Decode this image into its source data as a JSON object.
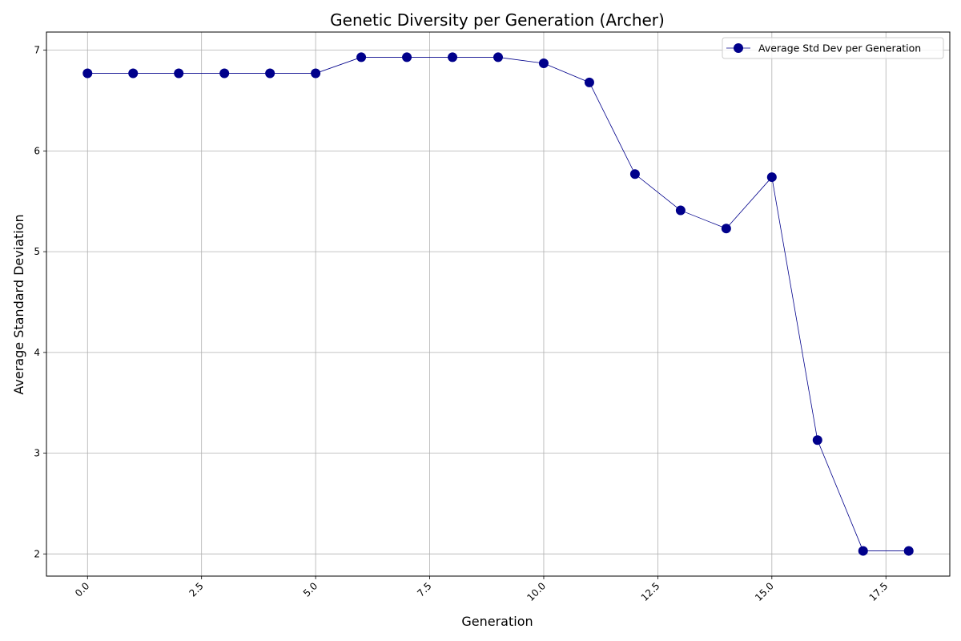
{
  "chart_data": {
    "type": "line",
    "title": "Genetic Diversity per Generation (Archer)",
    "xlabel": "Generation",
    "ylabel": "Average Standard Deviation",
    "xlim": [
      -0.9,
      18.9
    ],
    "ylim": [
      1.78,
      7.18
    ],
    "xticks": [
      0.0,
      2.5,
      5.0,
      7.5,
      10.0,
      12.5,
      15.0,
      17.5
    ],
    "xtick_labels": [
      "0.0",
      "2.5",
      "5.0",
      "7.5",
      "10.0",
      "12.5",
      "15.0",
      "17.5"
    ],
    "yticks": [
      2,
      3,
      4,
      5,
      6,
      7
    ],
    "ytick_labels": [
      "2",
      "3",
      "4",
      "5",
      "6",
      "7"
    ],
    "grid": true,
    "legend_position": "top-right",
    "series": [
      {
        "name": "Average Std Dev per Generation",
        "color": "#00008b",
        "marker": "circle",
        "x": [
          0,
          1,
          2,
          3,
          4,
          5,
          6,
          7,
          8,
          9,
          10,
          11,
          12,
          13,
          14,
          15,
          16,
          17,
          18
        ],
        "y": [
          6.77,
          6.77,
          6.77,
          6.77,
          6.77,
          6.77,
          6.93,
          6.93,
          6.93,
          6.93,
          6.87,
          6.68,
          5.77,
          5.41,
          5.23,
          5.74,
          3.13,
          2.03,
          2.03
        ]
      }
    ]
  }
}
